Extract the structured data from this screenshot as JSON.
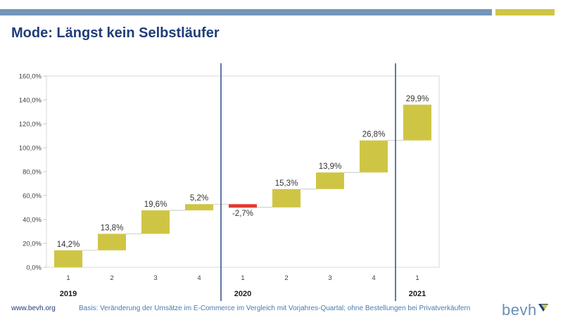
{
  "header": {
    "title": "Mode: Längst kein Selbstläufer"
  },
  "footer": {
    "url": "www.bevh.org",
    "note": "Basis: Veränderung der Umsätze im E-Commerce im Vergleich mit Vorjahres-Quartal;  ohne Bestellungen bei Privatverkäufern",
    "logo_text": "bevh"
  },
  "colors": {
    "accent_blue": "#7396b8",
    "accent_yellow": "#cfc545",
    "positive_bar": "#cfc545",
    "negative_bar": "#e03a2f",
    "title_color": "#1f3d7a"
  },
  "chart_data": {
    "type": "bar",
    "subtype": "waterfall",
    "categories": [
      "1",
      "2",
      "3",
      "4",
      "1",
      "2",
      "3",
      "4",
      "1"
    ],
    "groups": [
      {
        "label": "2019",
        "categories": [
          "1",
          "2",
          "3",
          "4"
        ]
      },
      {
        "label": "2020",
        "categories": [
          "1",
          "2",
          "3",
          "4"
        ]
      },
      {
        "label": "2021",
        "categories": [
          "1"
        ]
      }
    ],
    "values": [
      14.2,
      13.8,
      19.6,
      5.2,
      -2.7,
      15.3,
      13.9,
      26.8,
      29.9
    ],
    "labels": [
      "14,2%",
      "13,8%",
      "19,6%",
      "5,2%",
      "-2,7%",
      "15,3%",
      "13,9%",
      "26,8%",
      "29,9%"
    ],
    "y_ticks": [
      "0,0%",
      "20,0%",
      "40,0%",
      "60,0%",
      "80,0%",
      "100,0%",
      "120,0%",
      "140,0%",
      "160,0%"
    ],
    "ylim": [
      0,
      160
    ],
    "grid": false,
    "title": "",
    "xlabel": "",
    "ylabel": ""
  }
}
